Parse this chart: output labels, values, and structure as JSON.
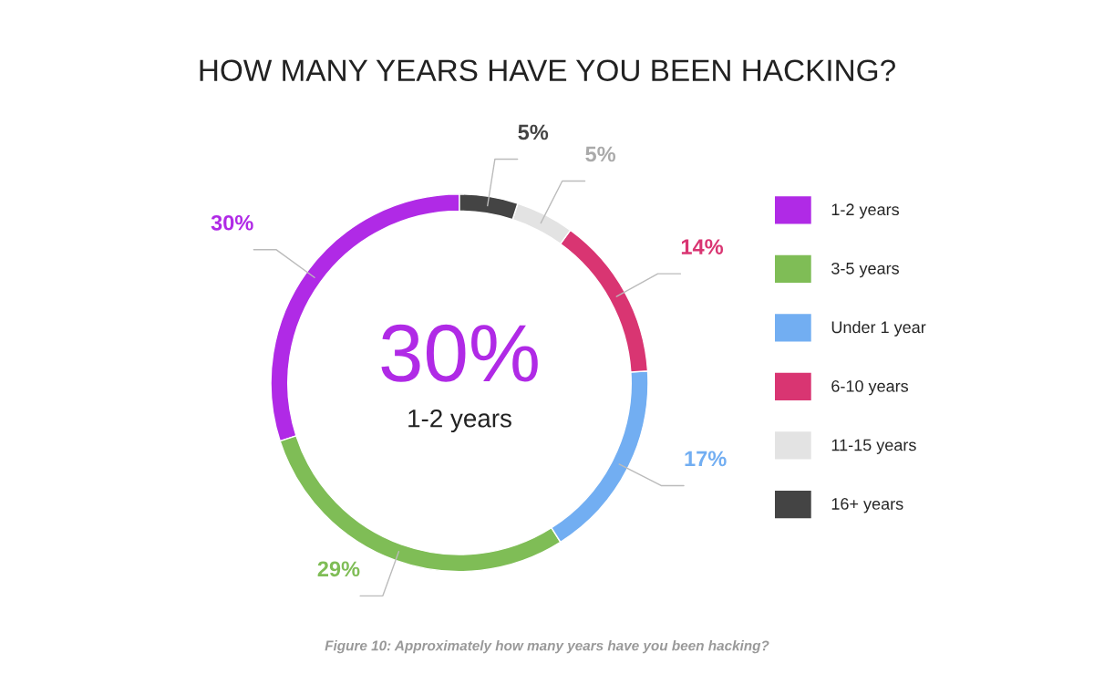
{
  "chart_data": {
    "type": "donut",
    "title": "HOW MANY YEARS HAVE YOU BEEN HACKING?",
    "categories": [
      "1-2 years",
      "3-5 years",
      "Under 1 year",
      "6-10 years",
      "11-15 years",
      "16+ years"
    ],
    "values": [
      30,
      29,
      17,
      14,
      5,
      5
    ],
    "colors": [
      "#b02ae6",
      "#7fbd56",
      "#72aef2",
      "#d93572",
      "#e3e3e3",
      "#444444"
    ],
    "value_labels": [
      "30%",
      "29%",
      "17%",
      "14%",
      "5%",
      "5%"
    ],
    "annotations": [
      "30%",
      "1-2 years",
      "Figure 10: Approximately how many years have you been hacking?"
    ],
    "legend": "right"
  }
}
